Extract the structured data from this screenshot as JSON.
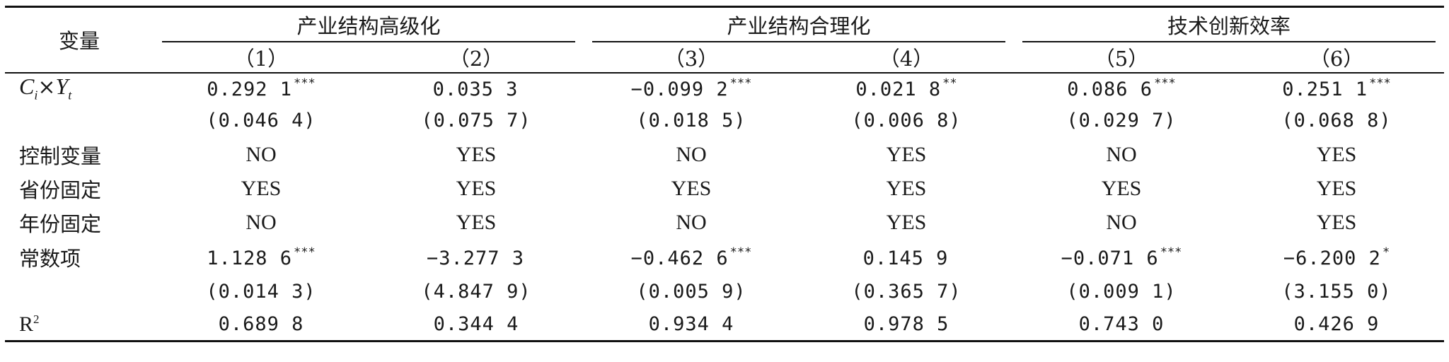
{
  "header": {
    "variable_label": "变量",
    "groups": [
      "产业结构高级化",
      "产业结构合理化",
      "技术创新效率"
    ],
    "columns": [
      "（1）",
      "（2）",
      "（3）",
      "（4）",
      "（5）",
      "（6）"
    ]
  },
  "interaction_row": {
    "label_c": "C",
    "label_c_sub": "i",
    "label_times": "×",
    "label_y": "Y",
    "label_y_sub": "t",
    "coef": [
      "0.292 1",
      "0.035 3",
      "−0.099 2",
      "0.021 8",
      "0.086 6",
      "0.251 1"
    ],
    "stars": [
      "***",
      "",
      "***",
      "**",
      "***",
      "***"
    ],
    "se": [
      "(0.046 4)",
      "(0.075 7)",
      "(0.018 5)",
      "(0.006 8)",
      "(0.029 7)",
      "(0.068 8)"
    ]
  },
  "controls_row": {
    "label": "控制变量",
    "values": [
      "NO",
      "YES",
      "NO",
      "YES",
      "NO",
      "YES"
    ]
  },
  "province_fe_row": {
    "label": "省份固定",
    "values": [
      "YES",
      "YES",
      "YES",
      "YES",
      "YES",
      "YES"
    ]
  },
  "year_fe_row": {
    "label": "年份固定",
    "values": [
      "NO",
      "YES",
      "NO",
      "YES",
      "NO",
      "YES"
    ]
  },
  "constant_row": {
    "label": "常数项",
    "coef": [
      "1.128 6",
      "−3.277 3",
      "−0.462 6",
      "0.145 9",
      "−0.071 6",
      "−6.200 2"
    ],
    "stars": [
      "***",
      "",
      "***",
      "",
      "***",
      "*"
    ],
    "se": [
      "(0.014 3)",
      "(4.847 9)",
      "(0.005 9)",
      "(0.365 7)",
      "(0.009 1)",
      "(3.155 0)"
    ]
  },
  "r2_row": {
    "label": "R",
    "label_sup": "2",
    "values": [
      "0.689 8",
      "0.344 4",
      "0.934 4",
      "0.978 5",
      "0.743 0",
      "0.426 9"
    ]
  }
}
